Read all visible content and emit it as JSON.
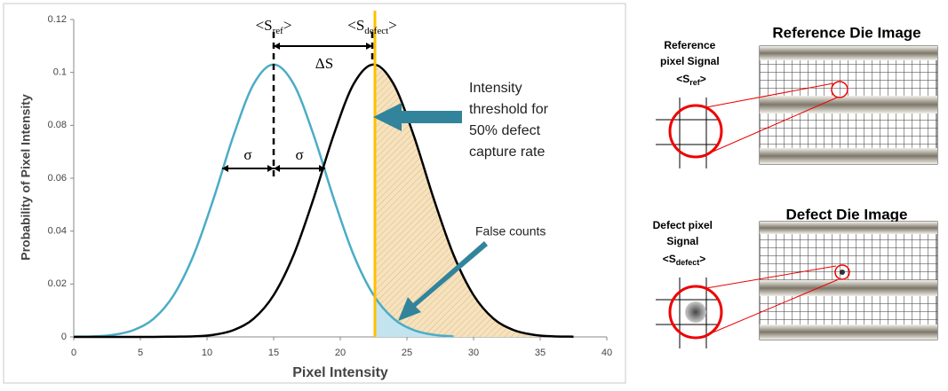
{
  "chart_data": {
    "type": "line",
    "xlabel": "Pixel Intensity",
    "ylabel": "Probability of Pixel Intensity",
    "x": [
      0,
      1.5,
      3,
      4.5,
      6,
      7.5,
      9,
      10.5,
      12,
      13.5,
      15,
      16.5,
      18,
      19.5,
      21,
      22.5,
      24,
      25.5,
      27,
      28.5,
      30,
      31.5,
      33,
      34.5,
      36,
      37.5
    ],
    "series": [
      {
        "color": "#4bacc6",
        "values": [
          0.0001,
          0.0002,
          0.0008,
          0.0026,
          0.0069,
          0.0158,
          0.031,
          0.0524,
          0.0763,
          0.0956,
          0.103,
          0.0956,
          0.0763,
          0.0524,
          0.031,
          0.0158,
          0.0069,
          0.0026,
          0.0008,
          0.0002,
          null,
          null,
          null,
          null,
          null,
          null
        ]
      },
      {
        "color": "#000000",
        "values": [
          0,
          0,
          0,
          0,
          0,
          0.0001,
          0.0002,
          0.0008,
          0.0026,
          0.0069,
          0.0158,
          0.031,
          0.0524,
          0.0763,
          0.0956,
          0.103,
          0.0956,
          0.0763,
          0.0524,
          0.031,
          0.0158,
          0.0069,
          0.0026,
          0.0008,
          0.0002,
          0.0001
        ]
      }
    ],
    "xlim": [
      0,
      40
    ],
    "xticks": [
      0,
      5,
      10,
      15,
      20,
      25,
      30,
      35,
      40
    ],
    "ylim": [
      0,
      0.12
    ],
    "yticks": [
      0,
      0.02,
      0.04,
      0.06,
      0.08,
      0.1,
      0.12
    ],
    "grid": false,
    "reference_mean": 15,
    "sigma": 3.87,
    "threshold": 22.6,
    "threshold_color": "#ffc000",
    "annotations": {
      "s_ref": {
        "open": "<S",
        "sub": "ref",
        "close": ">"
      },
      "s_defect": {
        "open": "<S",
        "sub": "defect",
        "close": ">"
      },
      "delta_s": "ΔS",
      "sigma": "σ",
      "threshold_text": [
        "Intensity",
        "threshold for",
        "50% defect",
        "capture rate"
      ],
      "false_counts": "False counts"
    }
  },
  "diagram": {
    "reference": {
      "title": "Reference Die Image",
      "signal_label": [
        "Reference",
        "pixel Signal"
      ],
      "signal": {
        "open": "<S",
        "sub": "ref",
        "close": ">"
      }
    },
    "defect": {
      "title": "Defect Die Image",
      "signal_label": [
        "Defect pixel",
        "Signal"
      ],
      "signal": {
        "open": "<S",
        "sub": "defect",
        "close": ">"
      }
    }
  }
}
